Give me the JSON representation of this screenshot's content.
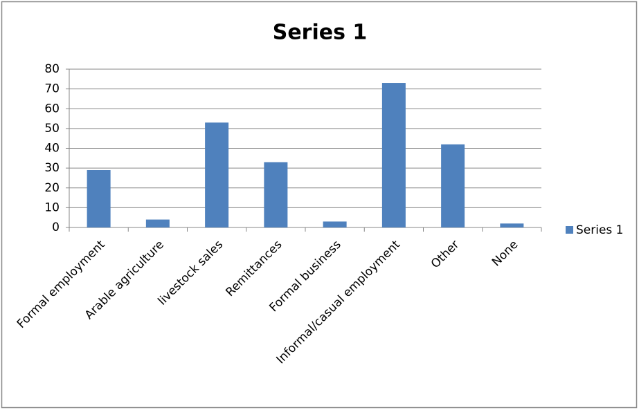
{
  "chart_data": {
    "type": "bar",
    "title": "Series 1",
    "categories": [
      "Formal employment",
      "Arable agriculture",
      "livestock sales",
      "Remittances",
      "Formal business",
      "Informal/casual employment",
      "Other",
      "None"
    ],
    "series": [
      {
        "name": "Series 1",
        "color": "#4f81bd",
        "values": [
          29,
          4,
          53,
          33,
          3,
          73,
          42,
          2
        ]
      }
    ],
    "ylim": [
      0,
      80
    ],
    "yticks": [
      0,
      10,
      20,
      30,
      40,
      50,
      60,
      70,
      80
    ],
    "grid": true,
    "legend": "right"
  }
}
